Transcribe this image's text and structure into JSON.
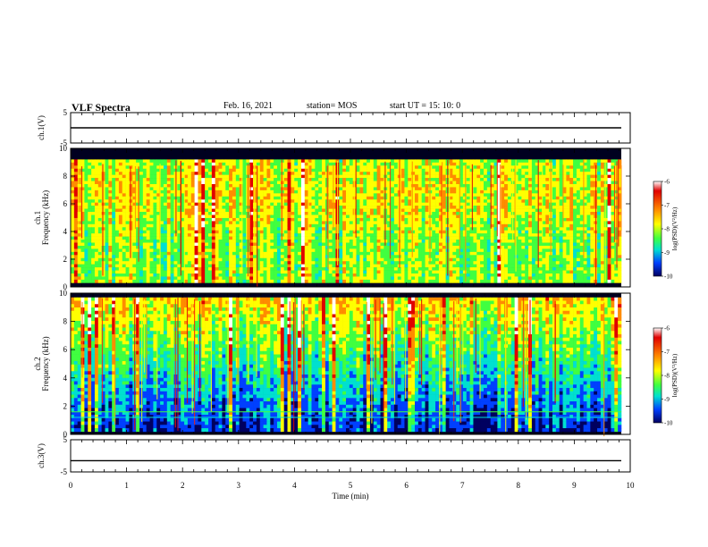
{
  "header": {
    "title": "VLF Spectra",
    "date": "Feb. 16, 2021",
    "station": "station= MOS",
    "start": "start  UT =   15: 10: 0"
  },
  "colors": {
    "ramp": [
      "#ffffff",
      "#e00000",
      "#ff8c00",
      "#ffff00",
      "#40ff40",
      "#00e0d0",
      "#0040ff",
      "#000060"
    ]
  },
  "chart_data": [
    {
      "type": "line",
      "panel": "ch1-waveform",
      "ylabel": "ch.1(V)",
      "ylim": [
        -5,
        5
      ],
      "yticks": [
        "5",
        "-5"
      ],
      "xlim": [
        0,
        10
      ],
      "series": [
        {
          "x": [
            0,
            9.84
          ],
          "y": [
            0,
            0
          ]
        }
      ]
    },
    {
      "type": "heatmap",
      "panel": "ch1-spectrogram",
      "ylabel": "ch.1\nFrequency (kHz)",
      "ylim": [
        0,
        10
      ],
      "yticks": [
        "0",
        "2",
        "4",
        "6",
        "8",
        "10"
      ],
      "xlim": [
        0,
        10
      ],
      "data_end_min": 9.84,
      "band_khz": [
        0.3,
        9.2
      ],
      "colorbar": {
        "label": "log(PSD)(V²/Hz)",
        "range": [
          -10,
          -6
        ],
        "ticks": [
          "-6",
          "-7",
          "-8",
          "-9",
          "-10"
        ]
      }
    },
    {
      "type": "heatmap",
      "panel": "ch2-spectrogram",
      "ylabel": "ch.2\nFrequency (kHz)",
      "ylim": [
        0,
        10
      ],
      "yticks": [
        "0",
        "2",
        "4",
        "6",
        "8",
        "10"
      ],
      "xlim": [
        0,
        10
      ],
      "data_end_min": 9.84,
      "band_khz": [
        0.2,
        9.7
      ],
      "colorbar": {
        "label": "log(PSD)(V²/Hz)",
        "range": [
          -10,
          -6
        ],
        "ticks": [
          "-6",
          "-7",
          "-8",
          "-9",
          "-10"
        ]
      }
    },
    {
      "type": "line",
      "panel": "ch3-waveform",
      "ylabel": "ch.3(V)",
      "ylim": [
        -5,
        5
      ],
      "yticks": [
        "5",
        "-5"
      ],
      "xlim": [
        0,
        10
      ],
      "xlabel": "Time (min)",
      "xticks": [
        "0",
        "1",
        "2",
        "3",
        "4",
        "5",
        "6",
        "7",
        "8",
        "9",
        "10"
      ],
      "series": [
        {
          "x": [
            0,
            9.84
          ],
          "y": [
            -1.5,
            -1.5
          ]
        }
      ]
    }
  ]
}
